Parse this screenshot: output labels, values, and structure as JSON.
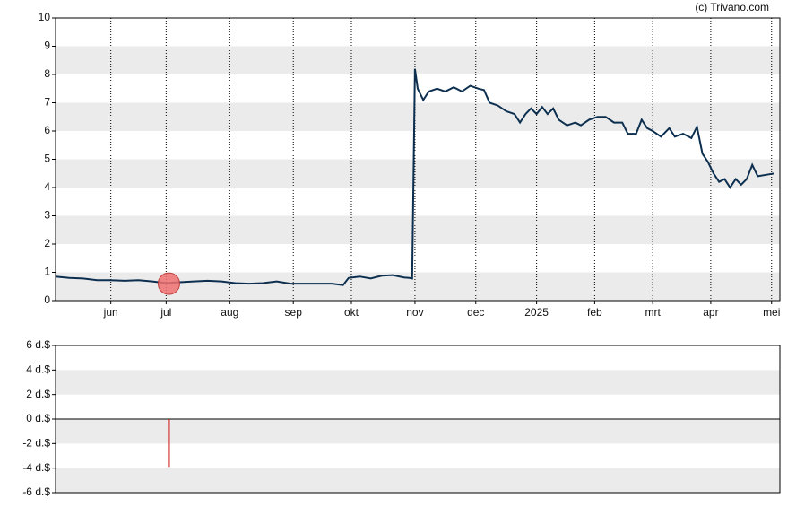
{
  "credit": "(c) Trivano.com",
  "chart_data": [
    {
      "type": "line",
      "xlim": [
        0,
        262
      ],
      "xticks": [
        {
          "value": 20,
          "label": "jun"
        },
        {
          "value": 40,
          "label": "jul"
        },
        {
          "value": 63,
          "label": "aug"
        },
        {
          "value": 86,
          "label": "sep"
        },
        {
          "value": 107,
          "label": "okt"
        },
        {
          "value": 130,
          "label": "nov"
        },
        {
          "value": 152,
          "label": "dec"
        },
        {
          "value": 174,
          "label": "2025"
        },
        {
          "value": 195,
          "label": "feb"
        },
        {
          "value": 216,
          "label": "mrt"
        },
        {
          "value": 237,
          "label": "apr"
        },
        {
          "value": 259,
          "label": "mei"
        }
      ],
      "ylim": [
        0,
        10
      ],
      "yticks": [
        0,
        1,
        2,
        3,
        4,
        5,
        6,
        7,
        8,
        9,
        10
      ],
      "grid": true,
      "series": [
        {
          "color": "#0d2f4f",
          "x": [
            0,
            5,
            10,
            15,
            20,
            25,
            30,
            35,
            40,
            45,
            50,
            55,
            60,
            65,
            70,
            75,
            80,
            85,
            90,
            95,
            100,
            104,
            106,
            110,
            114,
            118,
            122,
            126,
            128,
            129,
            130,
            131,
            133,
            135,
            138,
            141,
            144,
            147,
            150,
            153,
            155,
            157,
            160,
            163,
            166,
            168,
            170,
            172,
            174,
            176,
            178,
            180,
            182,
            185,
            188,
            190,
            193,
            196,
            199,
            202,
            205,
            207,
            210,
            212,
            214,
            216,
            219,
            222,
            224,
            227,
            230,
            232,
            234,
            236,
            238,
            240,
            242,
            244,
            246,
            248,
            250,
            252,
            254,
            257,
            260
          ],
          "values": [
            0.85,
            0.8,
            0.78,
            0.72,
            0.72,
            0.7,
            0.72,
            0.68,
            0.62,
            0.65,
            0.68,
            0.7,
            0.68,
            0.62,
            0.6,
            0.62,
            0.68,
            0.6,
            0.6,
            0.6,
            0.6,
            0.55,
            0.8,
            0.85,
            0.78,
            0.88,
            0.9,
            0.82,
            0.8,
            0.78,
            8.2,
            7.5,
            7.1,
            7.4,
            7.5,
            7.4,
            7.55,
            7.4,
            7.6,
            7.5,
            7.45,
            7.0,
            6.9,
            6.7,
            6.6,
            6.3,
            6.6,
            6.8,
            6.6,
            6.85,
            6.6,
            6.8,
            6.4,
            6.2,
            6.3,
            6.2,
            6.4,
            6.5,
            6.5,
            6.3,
            6.3,
            5.9,
            5.9,
            6.4,
            6.1,
            6.0,
            5.8,
            6.1,
            5.8,
            5.9,
            5.75,
            6.15,
            5.2,
            4.9,
            4.5,
            4.2,
            4.3,
            4.0,
            4.3,
            4.1,
            4.3,
            4.8,
            4.4,
            4.45,
            4.5
          ]
        }
      ],
      "markers": {
        "color": "#f07070",
        "x": [
          41
        ],
        "values": [
          0.6
        ]
      }
    },
    {
      "type": "bar",
      "xlim": [
        0,
        262
      ],
      "ylim": [
        -6,
        6
      ],
      "yticks": [
        {
          "value": -6,
          "label": "-6 d.$"
        },
        {
          "value": -4,
          "label": "-4 d.$"
        },
        {
          "value": -2,
          "label": "-2 d.$"
        },
        {
          "value": 0,
          "label": "0 d.$"
        },
        {
          "value": 2,
          "label": "2 d.$"
        },
        {
          "value": 4,
          "label": "4 d.$"
        },
        {
          "value": 6,
          "label": "6 d.$"
        }
      ],
      "grid": true,
      "color": "#cc1111",
      "x": [
        41
      ],
      "values": [
        -3.9
      ]
    }
  ]
}
